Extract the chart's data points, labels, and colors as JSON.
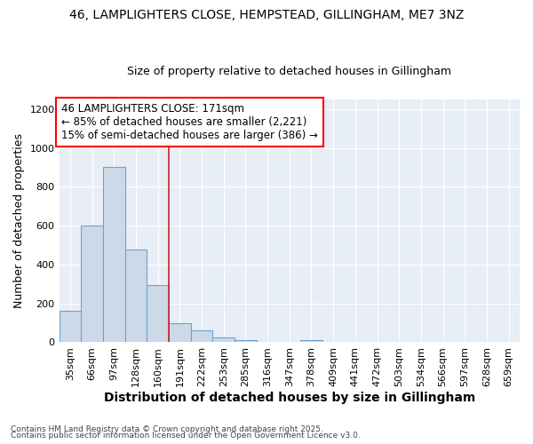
{
  "title1": "46, LAMPLIGHTERS CLOSE, HEMPSTEAD, GILLINGHAM, ME7 3NZ",
  "title2": "Size of property relative to detached houses in Gillingham",
  "xlabel": "Distribution of detached houses by size in Gillingham",
  "ylabel": "Number of detached properties",
  "categories": [
    "35sqm",
    "66sqm",
    "97sqm",
    "128sqm",
    "160sqm",
    "191sqm",
    "222sqm",
    "253sqm",
    "285sqm",
    "316sqm",
    "347sqm",
    "378sqm",
    "409sqm",
    "441sqm",
    "472sqm",
    "503sqm",
    "534sqm",
    "566sqm",
    "597sqm",
    "628sqm",
    "659sqm"
  ],
  "values": [
    160,
    600,
    900,
    475,
    295,
    100,
    62,
    27,
    12,
    0,
    0,
    10,
    0,
    0,
    0,
    0,
    0,
    0,
    0,
    0,
    0
  ],
  "bar_color": "#ccd9e8",
  "bar_edge_color": "#6ba3cc",
  "vline_x": 4.5,
  "vline_color": "#cc2222",
  "ylim": [
    0,
    1250
  ],
  "yticks": [
    0,
    200,
    400,
    600,
    800,
    1000,
    1200
  ],
  "annotation_text": "46 LAMPLIGHTERS CLOSE: 171sqm\n← 85% of detached houses are smaller (2,221)\n15% of semi-detached houses are larger (386) →",
  "footer1": "Contains HM Land Registry data © Crown copyright and database right 2025.",
  "footer2": "Contains public sector information licensed under the Open Government Licence v3.0.",
  "bg_color": "#ffffff",
  "plot_bg_color": "#e8eef5",
  "grid_color": "#ffffff",
  "title1_fontsize": 10,
  "title2_fontsize": 9,
  "xlabel_fontsize": 10,
  "ylabel_fontsize": 9,
  "tick_fontsize": 8,
  "ann_fontsize": 8.5
}
